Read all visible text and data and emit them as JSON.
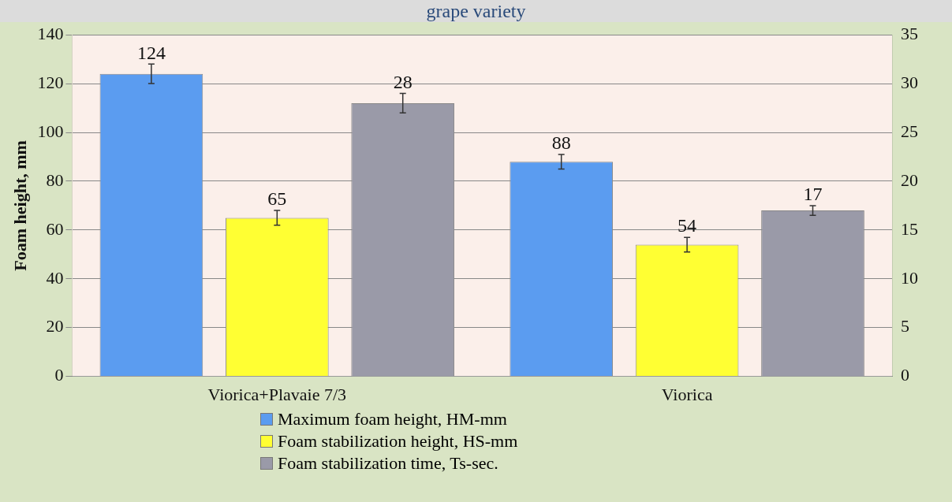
{
  "chart_data": {
    "type": "bar",
    "title": "grape variety",
    "ylabel": "Foam height, mm",
    "categories": [
      "Viorica+Plavaie 7/3",
      "Viorica"
    ],
    "series": [
      {
        "name": "Maximum foam height, HM-mm",
        "color": "#5b9cf0",
        "values": [
          124,
          88
        ],
        "errors": [
          4,
          3
        ]
      },
      {
        "name": "Foam stabilization height, HS-mm",
        "color": "#ffff33",
        "values": [
          65,
          54
        ],
        "errors": [
          3,
          3
        ]
      },
      {
        "name": "Foam stabilization time, Ts-sec.",
        "color": "#9a9aa8",
        "values": [
          28,
          17
        ],
        "errors": [
          1,
          0.5
        ],
        "axis": "y2"
      }
    ],
    "ylim": [
      0,
      140
    ],
    "yticks": [
      0,
      20,
      40,
      60,
      80,
      100,
      120,
      140
    ],
    "y2lim": [
      0,
      35
    ],
    "y2ticks": [
      0,
      5,
      10,
      15,
      20,
      25,
      30,
      35
    ],
    "grid": "y",
    "legend": "bottom",
    "data_labels": true
  }
}
